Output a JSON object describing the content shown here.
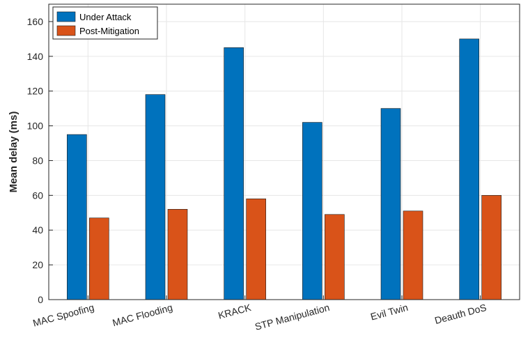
{
  "chart_data": {
    "type": "bar",
    "categories": [
      "MAC Spoofing",
      "MAC Flooding",
      "KRACK",
      "STP Manipulation",
      "Evil Twin",
      "Deauth DoS"
    ],
    "series": [
      {
        "name": "Under Attack",
        "values": [
          95,
          118,
          145,
          102,
          110,
          150
        ],
        "color": "#0072bd"
      },
      {
        "name": "Post-Mitigation",
        "values": [
          47,
          52,
          58,
          49,
          51,
          60
        ],
        "color": "#d95319"
      }
    ],
    "title": "",
    "xlabel": "",
    "ylabel": "Mean delay (ms)",
    "ylim": [
      0,
      170
    ],
    "yticks": [
      0,
      20,
      40,
      60,
      80,
      100,
      120,
      140,
      160
    ],
    "grid": true,
    "legend": "top-left"
  }
}
